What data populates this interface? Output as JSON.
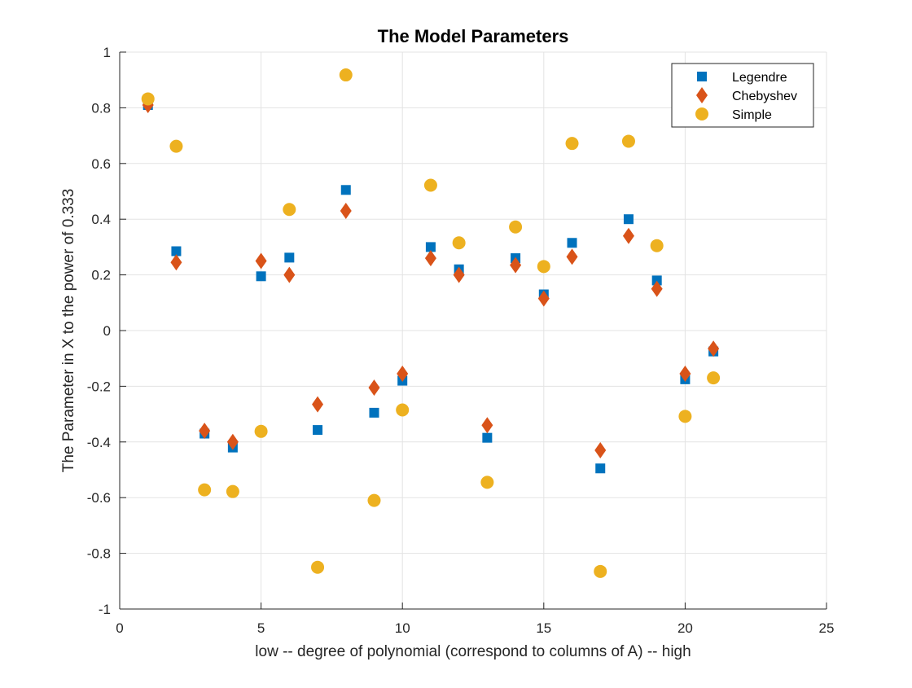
{
  "chart_data": {
    "type": "scatter",
    "title": "The Model Parameters",
    "xlabel": "low  -- degree of polynomial (correspond to columns of A) --   high",
    "ylabel": "The Parameter in X to the power of 0.333",
    "xlim": [
      0,
      25
    ],
    "ylim": [
      -1,
      1
    ],
    "xticks": [
      0,
      5,
      10,
      15,
      20,
      25
    ],
    "yticks": [
      -1,
      -0.8,
      -0.6,
      -0.4,
      -0.2,
      0,
      0.2,
      0.4,
      0.6,
      0.8,
      1
    ],
    "xtick_labels": [
      "0",
      "5",
      "10",
      "15",
      "20",
      "25"
    ],
    "ytick_labels": [
      "-1",
      "-0.8",
      "-0.6",
      "-0.4",
      "-0.2",
      "0",
      "0.2",
      "0.4",
      "0.6",
      "0.8",
      "1"
    ],
    "grid": true,
    "legend_position": "top-right",
    "x": [
      1,
      2,
      3,
      4,
      5,
      6,
      7,
      8,
      9,
      10,
      11,
      12,
      13,
      14,
      15,
      16,
      17,
      18,
      19,
      20,
      21
    ],
    "series": [
      {
        "name": "Legendre",
        "marker": "square",
        "color": "#0072BD",
        "values": [
          0.81,
          0.285,
          -0.37,
          -0.42,
          0.195,
          0.262,
          -0.357,
          0.505,
          -0.295,
          -0.18,
          0.3,
          0.22,
          -0.385,
          0.26,
          0.13,
          0.315,
          -0.495,
          0.4,
          0.18,
          -0.175,
          -0.075
        ]
      },
      {
        "name": "Chebyshev",
        "marker": "diamond",
        "color": "#D95319",
        "values": [
          0.81,
          0.245,
          -0.36,
          -0.4,
          0.25,
          0.2,
          -0.265,
          0.43,
          -0.205,
          -0.155,
          0.26,
          0.2,
          -0.34,
          0.235,
          0.115,
          0.265,
          -0.43,
          0.34,
          0.15,
          -0.155,
          -0.065
        ]
      },
      {
        "name": "Simple",
        "marker": "circle",
        "color": "#EDB120",
        "values": [
          0.832,
          0.662,
          -0.572,
          -0.578,
          -0.362,
          0.435,
          -0.85,
          0.918,
          -0.61,
          -0.285,
          0.522,
          0.315,
          -0.545,
          0.372,
          0.23,
          0.672,
          -0.865,
          0.68,
          0.305,
          -0.308,
          -0.17
        ]
      }
    ]
  }
}
